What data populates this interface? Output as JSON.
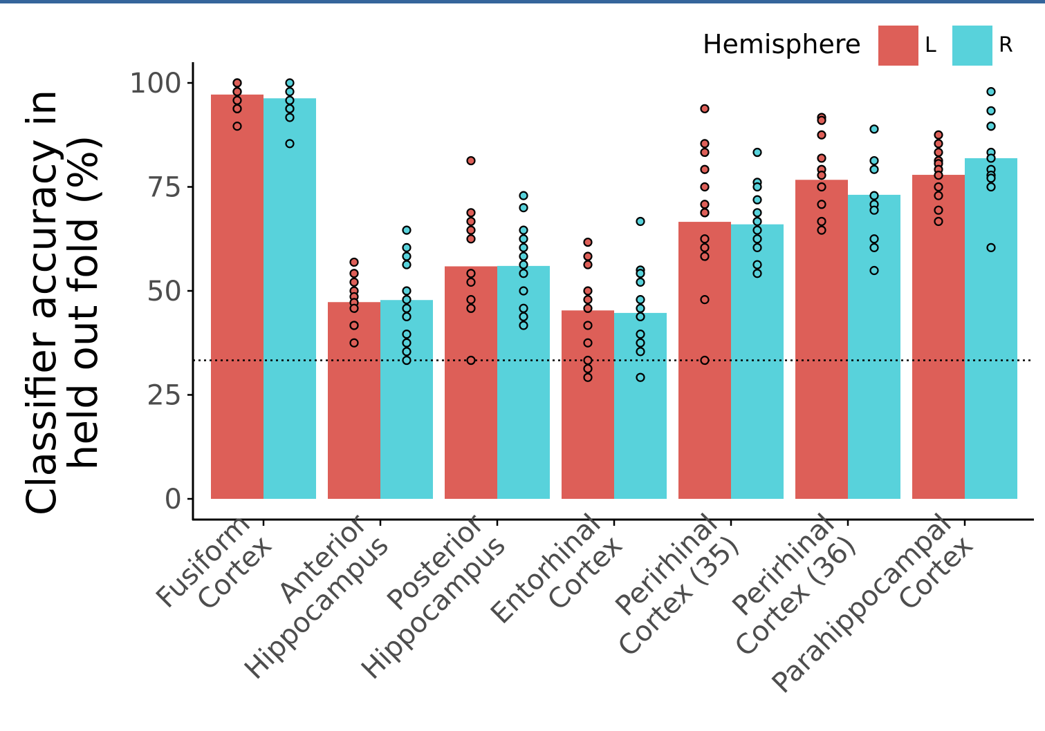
{
  "chart_data": {
    "type": "bar",
    "ylabel_lines": [
      "Classifier accuracy in",
      "held out fold (%)"
    ],
    "xlabel": "",
    "ylim": [
      0,
      100
    ],
    "yticks": [
      0,
      25,
      50,
      75,
      100
    ],
    "ytick_labels": [
      "0",
      "25",
      "50",
      "75",
      "100"
    ],
    "chance_line": 33.3,
    "chance_line_style": "dotted",
    "grid": false,
    "legend": {
      "title": "Hemisphere",
      "position": "top-right",
      "entries": [
        {
          "label": "L",
          "color": "#DD5F58"
        },
        {
          "label": "R",
          "color": "#58D2DB"
        }
      ]
    },
    "categories": [
      [
        "Fusiform",
        "Cortex"
      ],
      [
        "Anterior",
        "Hippocampus"
      ],
      [
        "Posterior",
        "Hippocampus"
      ],
      [
        "Entorhinal",
        "Cortex"
      ],
      [
        "Perirhinal",
        "Cortex (35)"
      ],
      [
        "Perirhinal",
        "Cortex (36)"
      ],
      [
        "Parahippocampal",
        "Cortex"
      ]
    ],
    "series": [
      {
        "name": "L",
        "color": "#DD5F58",
        "values": [
          97.2,
          47.3,
          55.9,
          45.3,
          66.6,
          76.7,
          77.9
        ],
        "points": [
          [
            100,
            100,
            97.9,
            97.9,
            95.8,
            93.8,
            93.8,
            89.6,
            100,
            97.9
          ],
          [
            56.9,
            54.2,
            52.1,
            50.0,
            48.6,
            47.2,
            45.8,
            41.7,
            41.7,
            37.5
          ],
          [
            81.3,
            68.8,
            66.7,
            64.6,
            62.5,
            54.2,
            52.1,
            47.9,
            45.8,
            33.3
          ],
          [
            61.7,
            58.3,
            56.3,
            50.0,
            47.9,
            45.8,
            41.7,
            37.5,
            33.3,
            31.3,
            29.2
          ],
          [
            93.8,
            85.4,
            83.3,
            79.2,
            75.0,
            70.8,
            68.8,
            68.8,
            62.5,
            60.4,
            58.3,
            47.9,
            33.3
          ],
          [
            91.7,
            91.0,
            87.5,
            81.9,
            79.2,
            77.8,
            75.0,
            70.8,
            66.7,
            64.6
          ],
          [
            87.5,
            85.4,
            83.3,
            81.3,
            80.6,
            79.2,
            77.8,
            75.0,
            72.9,
            69.4,
            66.7
          ]
        ]
      },
      {
        "name": "R",
        "color": "#58D2DB",
        "values": [
          96.3,
          47.8,
          56.0,
          44.7,
          66.0,
          73.1,
          81.9
        ],
        "points": [
          [
            100,
            97.9,
            95.8,
            93.8,
            93.8,
            91.7,
            85.4
          ],
          [
            64.6,
            60.4,
            58.3,
            56.3,
            50.0,
            47.9,
            45.8,
            43.8,
            39.6,
            37.5,
            35.4,
            33.3
          ],
          [
            72.9,
            70.0,
            64.6,
            62.5,
            60.4,
            58.3,
            56.3,
            54.2,
            50.0,
            45.8,
            43.8,
            41.7
          ],
          [
            66.7,
            55.0,
            54.2,
            52.1,
            47.9,
            45.8,
            43.8,
            39.6,
            37.5,
            35.4,
            29.2
          ],
          [
            83.3,
            76.1,
            75.0,
            71.9,
            68.8,
            66.7,
            64.6,
            62.5,
            60.4,
            56.3,
            54.2
          ],
          [
            88.9,
            81.3,
            79.2,
            72.9,
            70.8,
            69.4,
            62.5,
            60.4,
            54.9
          ],
          [
            97.9,
            93.3,
            89.6,
            89.6,
            83.3,
            81.9,
            79.2,
            77.8,
            77.1,
            75.0,
            60.4
          ]
        ]
      }
    ]
  }
}
